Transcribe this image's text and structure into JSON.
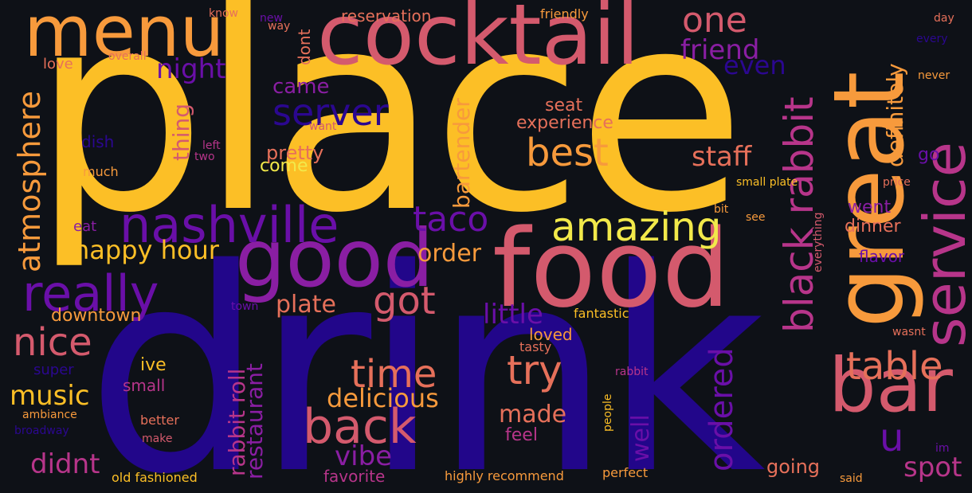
{
  "words": {
    "place": "place",
    "drink": "drink",
    "food": "food",
    "cocktail": "cocktail",
    "menu": "menu",
    "good": "good",
    "great": "great",
    "service": "service",
    "bar": "bar",
    "black_rabbit": "black rabbit",
    "nashville": "nashville",
    "really": "really",
    "atmosphere": "atmosphere",
    "amazing": "amazing",
    "back": "back",
    "time": "time",
    "try": "try",
    "ordered": "ordered",
    "table": "table",
    "nice": "nice",
    "server": "server",
    "best": "best",
    "taco": "taco",
    "got": "got",
    "one": "one",
    "friend": "friend",
    "even": "even",
    "night": "night",
    "happy_hour": "happy hour",
    "plate": "plate",
    "order": "order",
    "delicious": "delicious",
    "u": "u",
    "staff": "staff",
    "definitely": "definitely",
    "bartender": "bartender",
    "little": "little",
    "made": "made",
    "vibe": "vibe",
    "music": "music",
    "didnt": "didnt",
    "spot": "spot",
    "rabbit_roll": "rabbit roll",
    "restaurant": "restaurant",
    "downtown": "downtown",
    "came": "came",
    "thing": "thing",
    "pretty": "pretty",
    "experience": "experience",
    "seat": "seat",
    "come": "come",
    "dinner": "dinner",
    "went": "went",
    "flavor": "flavor",
    "well": "well",
    "going": "going",
    "feel": "feel",
    "loved": "loved",
    "tasty": "tasty",
    "fantastic": "fantastic",
    "ive": "ive",
    "small": "small",
    "super": "super",
    "reservation": "reservation",
    "friendly": "friendly",
    "know": "know",
    "new": "new",
    "way": "way",
    "dont": "dont",
    "love": "love",
    "overall": "overall",
    "dish": "dish",
    "want": "want",
    "left": "left",
    "two": "two",
    "much": "much",
    "eat": "eat",
    "small_plate": "small plate",
    "bit": "bit",
    "see": "see",
    "everything": "everything",
    "price": "price",
    "day": "day",
    "every": "every",
    "never": "never",
    "go": "go",
    "town": "town",
    "wasnt": "wasnt",
    "rabbit": "rabbit",
    "people": "people",
    "perfect": "perfect",
    "said": "said",
    "im": "im",
    "highly_recommend": "highly recommend",
    "favorite": "favorite",
    "old_fashioned": "old fashioned",
    "broadway": "broadway",
    "make": "make",
    "better": "better",
    "ambiance": "ambiance"
  },
  "colors": {
    "background": "#0e1117",
    "yellow": "#fcbf26",
    "light_yellow": "#f2e94a",
    "orange": "#f79a3c",
    "salmon": "#e6705a",
    "rose": "#d45a6d",
    "magenta": "#b7358a",
    "purple": "#8a1ea3",
    "violet": "#6a0fa8",
    "indigo": "#2b0790",
    "deep_indigo": "#22068a"
  }
}
